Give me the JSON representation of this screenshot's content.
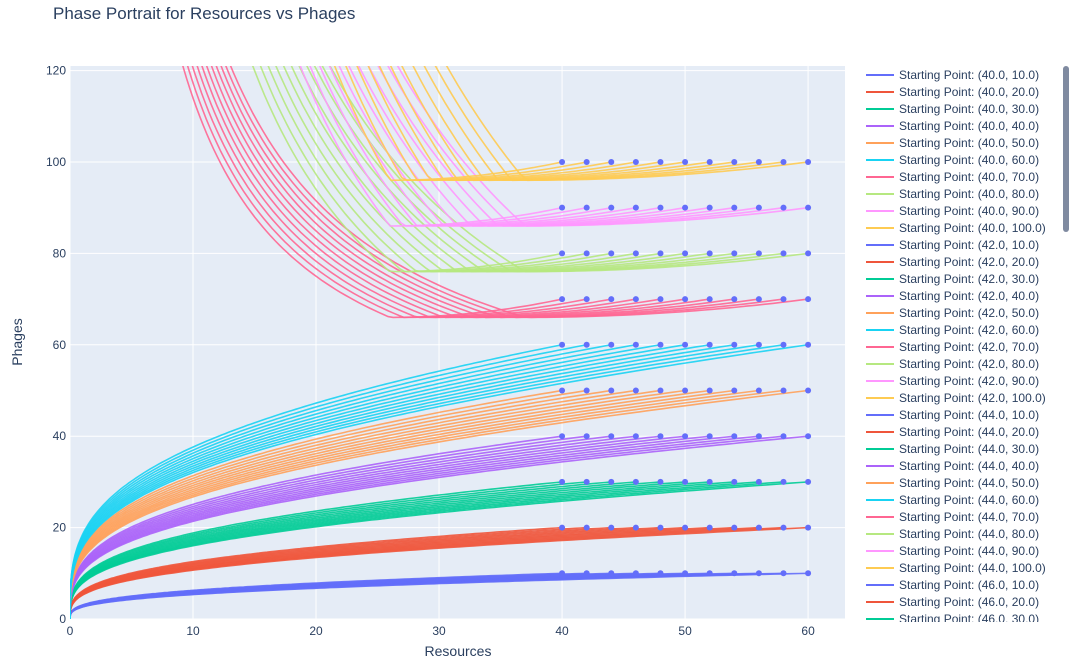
{
  "chart_data": {
    "type": "line",
    "title": "Phase Portrait for Resources vs Phages",
    "xlabel": "Resources",
    "ylabel": "Phages",
    "xlim": [
      0,
      63
    ],
    "ylim": [
      0,
      121
    ],
    "x_ticks": [
      0,
      10,
      20,
      30,
      40,
      50,
      60
    ],
    "y_ticks": [
      0,
      20,
      40,
      60,
      80,
      100,
      120
    ],
    "start_resources": [
      40,
      42,
      44,
      46,
      48,
      50,
      52,
      54,
      56,
      58,
      60
    ],
    "start_phages": [
      10,
      20,
      30,
      40,
      50,
      60,
      70,
      80,
      90,
      100
    ],
    "series_colors": [
      "#636efa",
      "#EF553B",
      "#00cc96",
      "#ab63fa",
      "#FFA15A",
      "#19d3f3",
      "#FF6692",
      "#B6E880",
      "#FF97FF",
      "#FECB52"
    ],
    "marker_color": "#636efa",
    "background_color": "#E5ECF6",
    "legend": [
      "Starting Point: (40.0, 10.0)",
      "Starting Point: (40.0, 20.0)",
      "Starting Point: (40.0, 30.0)",
      "Starting Point: (40.0, 40.0)",
      "Starting Point: (40.0, 50.0)",
      "Starting Point: (40.0, 60.0)",
      "Starting Point: (40.0, 70.0)",
      "Starting Point: (40.0, 80.0)",
      "Starting Point: (40.0, 90.0)",
      "Starting Point: (40.0, 100.0)",
      "Starting Point: (42.0, 10.0)",
      "Starting Point: (42.0, 20.0)",
      "Starting Point: (42.0, 30.0)",
      "Starting Point: (42.0, 40.0)",
      "Starting Point: (42.0, 50.0)",
      "Starting Point: (42.0, 60.0)",
      "Starting Point: (42.0, 70.0)",
      "Starting Point: (42.0, 80.0)",
      "Starting Point: (42.0, 90.0)",
      "Starting Point: (42.0, 100.0)",
      "Starting Point: (44.0, 10.0)",
      "Starting Point: (44.0, 20.0)",
      "Starting Point: (44.0, 30.0)",
      "Starting Point: (44.0, 40.0)",
      "Starting Point: (44.0, 50.0)",
      "Starting Point: (44.0, 60.0)",
      "Starting Point: (44.0, 70.0)",
      "Starting Point: (44.0, 80.0)",
      "Starting Point: (44.0, 90.0)",
      "Starting Point: (44.0, 100.0)",
      "Starting Point: (46.0, 10.0)",
      "Starting Point: (46.0, 20.0)",
      "Starting Point: (46.0, 30.0)"
    ]
  }
}
